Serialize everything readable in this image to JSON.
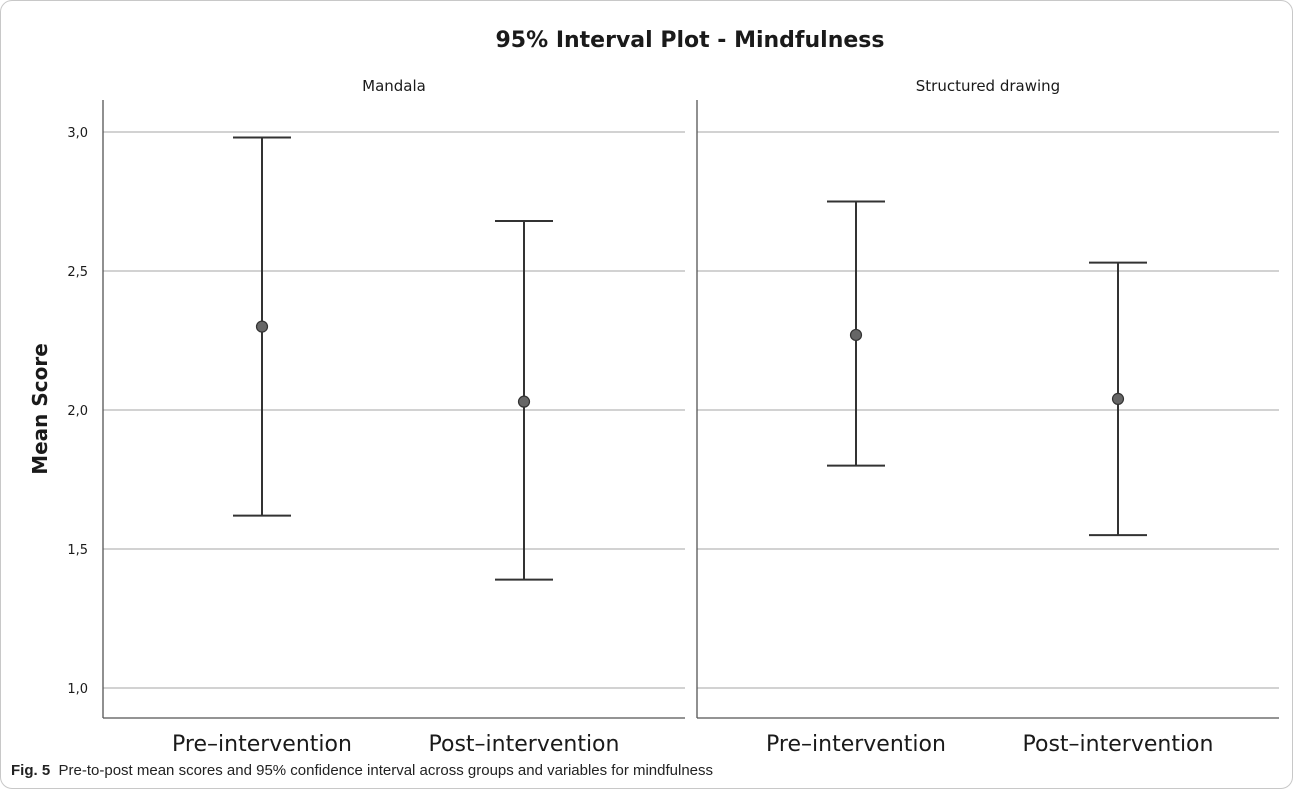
{
  "chart_data": {
    "type": "interval",
    "title": "95% Interval Plot - Mindfulness",
    "ylabel": "Mean Score",
    "xlabel": "",
    "ylim": [
      0.95,
      3.1
    ],
    "yticks": [
      1.0,
      1.5,
      2.0,
      2.5,
      3.0
    ],
    "ytick_labels": [
      "1,0",
      "1,5",
      "2,0",
      "2,5",
      "3,0"
    ],
    "grid": "horizontal",
    "categories": [
      "Pre-intervention",
      "Post-intervention"
    ],
    "category_labels": [
      "Pre–intervention",
      "Post–intervention"
    ],
    "panels": [
      {
        "name": "Mandala",
        "points": [
          {
            "category": "Pre-intervention",
            "mean": 2.3,
            "lower": 1.62,
            "upper": 2.98
          },
          {
            "category": "Post-intervention",
            "mean": 2.03,
            "lower": 1.39,
            "upper": 2.68
          }
        ]
      },
      {
        "name": "Structured drawing",
        "points": [
          {
            "category": "Pre-intervention",
            "mean": 2.27,
            "lower": 1.8,
            "upper": 2.75
          },
          {
            "category": "Post-intervention",
            "mean": 2.04,
            "lower": 1.55,
            "upper": 2.53
          }
        ]
      }
    ],
    "colors": {
      "marker": "#666666",
      "line": "#333333",
      "grid": "#b8b8b8"
    }
  },
  "caption": {
    "label": "Fig. 5",
    "text": "Pre-to-post mean scores and 95% confidence interval across groups and variables for mindfulness"
  }
}
